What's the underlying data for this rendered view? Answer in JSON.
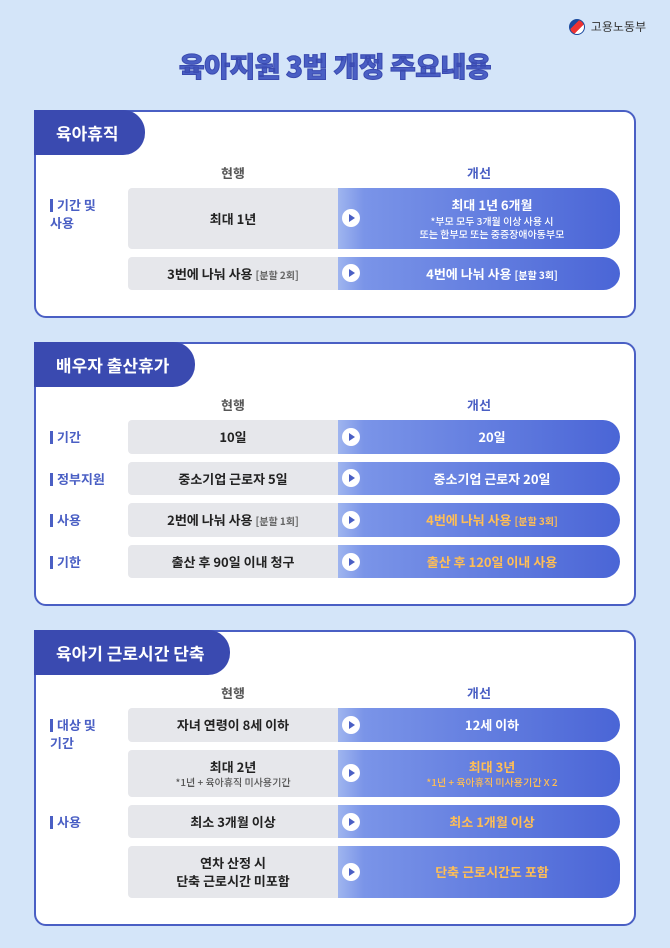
{
  "logo_text": "고용노동부",
  "title": "육아지원 3법 개정 주요내용",
  "col_before": "현행",
  "col_after": "개선",
  "colors": {
    "page_bg": "#d4e5f9",
    "card_border": "#4a5fc4",
    "header_bg": "#3a4ab0",
    "before_bg": "#e6e7eb",
    "after_grad_start": "#7a94e8",
    "after_grad_end": "#4a65d6",
    "accent_text": "#4a5fc4",
    "highlight_orange": "#ffbe55"
  },
  "sections": [
    {
      "name": "육아휴직",
      "rows": [
        {
          "label": "기간 및\n사용",
          "bars": [
            {
              "before_main": "최대 1년",
              "after_main": "최대 1년 6개월",
              "after_sub": "*부모 모두 3개월 이상 사용 시\n또는 한부모 또는 중증장애아동부모"
            },
            {
              "before_main": "3번에 나눠 사용",
              "before_note": "[분할 2회]",
              "after_main": "4번에 나눠 사용",
              "after_note": "[분할 3회]"
            }
          ]
        }
      ]
    },
    {
      "name": "배우자 출산휴가",
      "rows": [
        {
          "label": "기간",
          "bars": [
            {
              "before_main": "10일",
              "after_main": "20일"
            }
          ]
        },
        {
          "label": "정부지원",
          "bars": [
            {
              "before_main": "중소기업 근로자 5일",
              "after_main": "중소기업 근로자 20일"
            }
          ]
        },
        {
          "label": "사용",
          "bars": [
            {
              "before_main": "2번에 나눠 사용",
              "before_note": "[분할 1회]",
              "after_main": "4번에 나눠 사용",
              "after_note": "[분할 3회]",
              "after_orange": true
            }
          ]
        },
        {
          "label": "기한",
          "bars": [
            {
              "before_main": "출산 후 90일 이내 청구",
              "after_main": "출산 후 120일 이내 사용",
              "after_orange": true
            }
          ]
        }
      ]
    },
    {
      "name": "육아기 근로시간 단축",
      "rows": [
        {
          "label": "대상 및\n기간",
          "bars": [
            {
              "before_main": "자녀 연령이 8세 이하",
              "after_main": "12세 이하"
            },
            {
              "before_main": "최대 2년",
              "before_sub": "*1년 + 육아휴직 미사용기간",
              "after_main": "최대 3년",
              "after_sub": "*1년 + 육아휴직 미사용기간 X 2",
              "after_orange": true
            }
          ]
        },
        {
          "label": "사용",
          "bars": [
            {
              "before_main": "최소 3개월 이상",
              "after_main": "최소 1개월 이상",
              "after_orange": true
            },
            {
              "before_main": "연차 산정 시\n단축 근로시간 미포함",
              "after_main": "단축 근로시간도 포함",
              "after_orange": true
            }
          ]
        }
      ]
    }
  ]
}
